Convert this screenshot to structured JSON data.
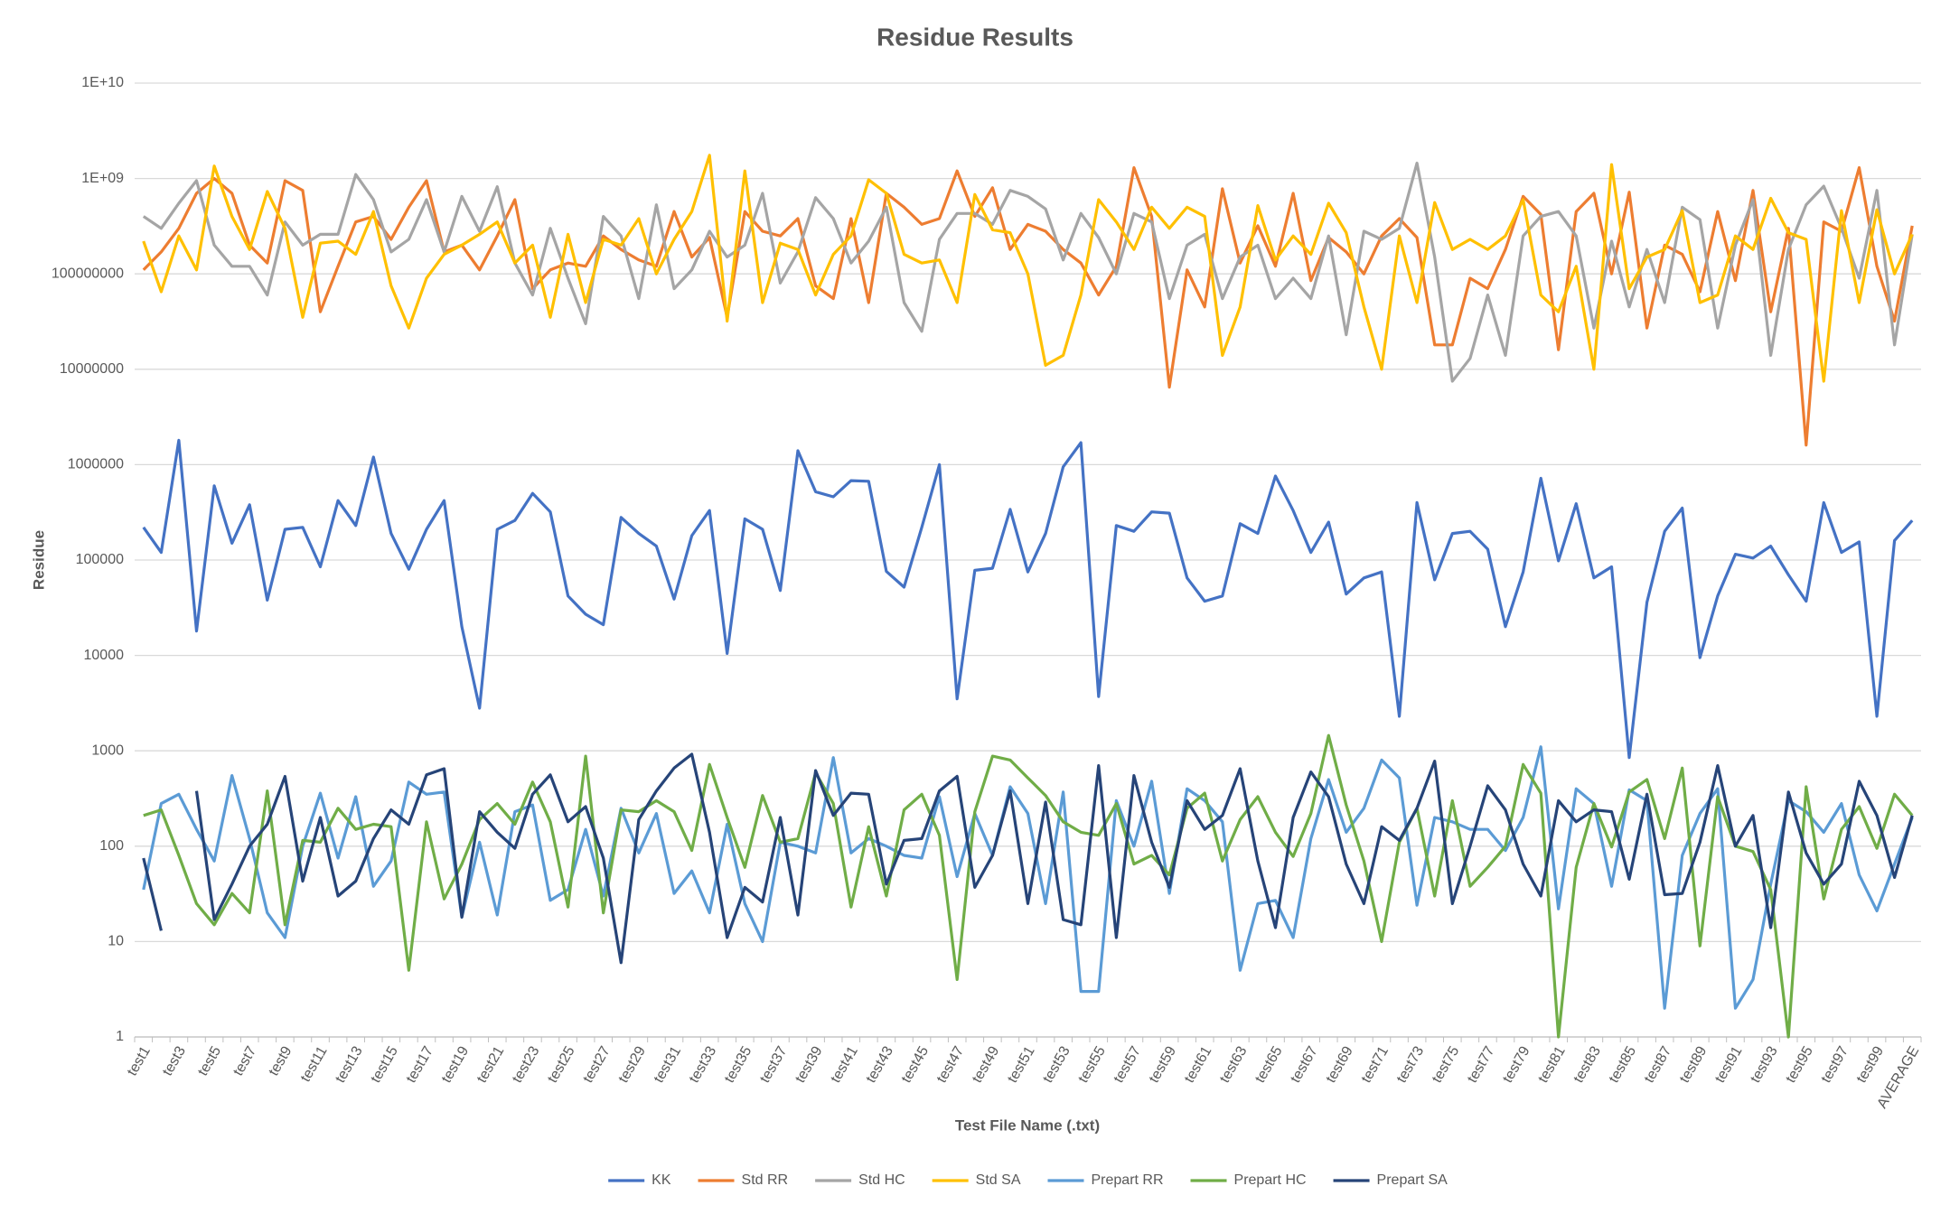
{
  "chart_data": {
    "type": "line",
    "title": "Residue Results",
    "x_label": "Test File Name (.txt)",
    "y_label": "Residue",
    "log_y": true,
    "grid": true,
    "legend": "bottom",
    "ylim": [
      1,
      10000000000
    ],
    "yticks": [
      1,
      10,
      100,
      1000,
      10000,
      100000,
      1000000,
      10000000,
      100000000,
      {
        "value": 1000000000,
        "label": "1E+09"
      },
      {
        "value": 10000000000,
        "label": "1E+10"
      }
    ],
    "categories": [
      "test1",
      null,
      "test3",
      null,
      "test5",
      null,
      "test7",
      null,
      "test9",
      null,
      "test11",
      null,
      "test13",
      null,
      "test15",
      null,
      "test17",
      null,
      "test19",
      null,
      "test21",
      null,
      "test23",
      null,
      "test25",
      null,
      "test27",
      null,
      "test29",
      null,
      "test31",
      null,
      "test33",
      null,
      "test35",
      null,
      "test37",
      null,
      "test39",
      null,
      "test41",
      null,
      "test43",
      null,
      "test45",
      null,
      "test47",
      null,
      "test49",
      null,
      "test51",
      null,
      "test53",
      null,
      "test55",
      null,
      "test57",
      null,
      "test59",
      null,
      "test61",
      null,
      "test63",
      null,
      "test65",
      null,
      "test67",
      null,
      "test69",
      null,
      "test71",
      null,
      "test73",
      null,
      "test75",
      null,
      "test77",
      null,
      "test79",
      null,
      "test81",
      null,
      "test83",
      null,
      "test85",
      null,
      "test87",
      null,
      "test89",
      null,
      "test91",
      null,
      "test93",
      null,
      "test95",
      null,
      "test97",
      null,
      "test99",
      null,
      "AVERAGE"
    ],
    "series": [
      {
        "name": "KK",
        "color": "#4472c4",
        "values": [
          220000,
          120000,
          1800000,
          18000,
          600000,
          150000,
          380000,
          38000,
          210000,
          220000,
          85000,
          420000,
          230000,
          1200000,
          190000,
          80000,
          210000,
          420000,
          20000,
          2800,
          210000,
          260000,
          500000,
          320000,
          42000,
          27000,
          21000,
          280000,
          190000,
          140000,
          39000,
          180000,
          330000,
          10500,
          270000,
          210000,
          48000,
          1400000,
          520000,
          460000,
          680000,
          670000,
          76000,
          52000,
          220000,
          1000000,
          3500,
          78000,
          82000,
          340000,
          75000,
          190000,
          950000,
          1700000,
          3700,
          230000,
          200000,
          320000,
          310000,
          65000,
          37000,
          42000,
          240000,
          190000,
          760000,
          330000,
          120000,
          250000,
          44000,
          65000,
          75000,
          2300,
          400000,
          62000,
          190000,
          200000,
          130000,
          20000,
          75000,
          720000,
          98000,
          390000,
          65000,
          85000,
          850,
          36000,
          200000,
          350000,
          9500,
          42000,
          115000,
          105000,
          140000,
          70000,
          37000,
          400000,
          120000,
          155000,
          2300,
          160000,
          260000
        ]
      },
      {
        "name": "Std RR",
        "color": "#ed7d31",
        "values": [
          110000000,
          170000000,
          300000000,
          700000000,
          1000000000,
          700000000,
          200000000,
          130000000,
          950000000,
          750000000,
          40000000,
          120000000,
          350000000,
          400000000,
          230000000,
          500000000,
          950000000,
          170000000,
          200000000,
          110000000,
          250000000,
          600000000,
          70000000,
          110000000,
          130000000,
          120000000,
          250000000,
          180000000,
          140000000,
          120000000,
          450000000,
          150000000,
          240000000,
          35000000,
          450000000,
          280000000,
          250000000,
          380000000,
          75000000,
          55000000,
          380000000,
          50000000,
          700000000,
          500000000,
          330000000,
          380000000,
          1200000000,
          400000000,
          800000000,
          180000000,
          330000000,
          280000000,
          180000000,
          130000000,
          60000000,
          120000000,
          1300000000,
          400000000,
          6500000,
          110000000,
          45000000,
          780000000,
          130000000,
          320000000,
          120000000,
          700000000,
          85000000,
          240000000,
          170000000,
          100000000,
          250000000,
          380000000,
          240000000,
          18000000,
          18000000,
          90000000,
          70000000,
          180000000,
          650000000,
          420000000,
          16000000,
          450000000,
          700000000,
          100000000,
          720000000,
          27000000,
          200000000,
          160000000,
          65000000,
          450000000,
          85000000,
          750000000,
          40000000,
          300000000,
          1600000,
          350000000,
          280000000,
          1300000000,
          120000000,
          32000000,
          320000000
        ]
      },
      {
        "name": "Std HC",
        "color": "#a5a5a5",
        "values": [
          400000000,
          300000000,
          550000000,
          950000000,
          200000000,
          120000000,
          120000000,
          60000000,
          350000000,
          200000000,
          260000000,
          260000000,
          1100000000,
          600000000,
          170000000,
          230000000,
          600000000,
          170000000,
          650000000,
          280000000,
          820000000,
          130000000,
          60000000,
          300000000,
          90000000,
          30000000,
          400000000,
          250000000,
          55000000,
          530000000,
          70000000,
          110000000,
          280000000,
          150000000,
          200000000,
          700000000,
          80000000,
          170000000,
          630000000,
          380000000,
          130000000,
          220000000,
          500000000,
          50000000,
          25000000,
          230000000,
          430000000,
          430000000,
          330000000,
          750000000,
          650000000,
          480000000,
          140000000,
          430000000,
          240000000,
          100000000,
          430000000,
          350000000,
          55000000,
          200000000,
          260000000,
          55000000,
          150000000,
          200000000,
          55000000,
          90000000,
          55000000,
          250000000,
          23000000,
          280000000,
          230000000,
          300000000,
          1450000000,
          150000000,
          7500000,
          13000000,
          60000000,
          14000000,
          250000000,
          400000000,
          450000000,
          250000000,
          27000000,
          220000000,
          45000000,
          180000000,
          50000000,
          500000000,
          370000000,
          27000000,
          200000000,
          600000000,
          14000000,
          180000000,
          530000000,
          830000000,
          300000000,
          90000000,
          750000000,
          18000000,
          260000000
        ]
      },
      {
        "name": "Std SA",
        "color": "#ffc000",
        "values": [
          220000000,
          65000000,
          250000000,
          110000000,
          1350000000,
          400000000,
          180000000,
          730000000,
          300000000,
          35000000,
          210000000,
          220000000,
          160000000,
          450000000,
          75000000,
          27000000,
          90000000,
          160000000,
          200000000,
          260000000,
          350000000,
          130000000,
          200000000,
          35000000,
          260000000,
          50000000,
          230000000,
          200000000,
          380000000,
          100000000,
          230000000,
          450000000,
          1750000000,
          32000000,
          1200000000,
          50000000,
          210000000,
          180000000,
          60000000,
          160000000,
          250000000,
          970000000,
          700000000,
          160000000,
          130000000,
          140000000,
          50000000,
          680000000,
          290000000,
          270000000,
          100000000,
          11000000,
          14000000,
          60000000,
          600000000,
          350000000,
          180000000,
          500000000,
          300000000,
          500000000,
          400000000,
          14000000,
          45000000,
          520000000,
          140000000,
          250000000,
          160000000,
          550000000,
          270000000,
          45000000,
          10000000,
          250000000,
          50000000,
          560000000,
          180000000,
          230000000,
          180000000,
          250000000,
          600000000,
          60000000,
          40000000,
          120000000,
          10000000,
          1400000000,
          70000000,
          150000000,
          180000000,
          460000000,
          50000000,
          60000000,
          250000000,
          180000000,
          620000000,
          270000000,
          230000000,
          7500000,
          460000000,
          50000000,
          470000000,
          100000000,
          260000000
        ]
      },
      {
        "name": "Prepart RR",
        "color": "#5b9bd5",
        "values": [
          35,
          280,
          350,
          150,
          70,
          550,
          120,
          20,
          11,
          100,
          360,
          75,
          330,
          38,
          70,
          470,
          350,
          370,
          18,
          110,
          19,
          230,
          270,
          27,
          35,
          150,
          30,
          250,
          85,
          220,
          32,
          55,
          20,
          170,
          25,
          10,
          110,
          100,
          85,
          850,
          85,
          120,
          100,
          80,
          75,
          330,
          48,
          220,
          80,
          420,
          220,
          25,
          370,
          3,
          3,
          300,
          100,
          480,
          32,
          400,
          300,
          180,
          5,
          25,
          27,
          11,
          120,
          500,
          140,
          250,
          800,
          520,
          24,
          200,
          180,
          150,
          150,
          90,
          200,
          1100,
          22,
          400,
          280,
          38,
          390,
          300,
          2,
          80,
          220,
          400,
          2,
          4,
          40,
          300,
          230,
          140,
          280,
          50,
          21,
          65,
          200
        ]
      },
      {
        "name": "Prepart HC",
        "color": "#70ad47",
        "values": [
          210,
          240,
          80,
          25,
          15,
          32,
          20,
          380,
          15,
          115,
          110,
          250,
          150,
          170,
          160,
          5,
          180,
          28,
          65,
          190,
          280,
          170,
          470,
          180,
          23,
          880,
          20,
          240,
          230,
          300,
          230,
          90,
          720,
          200,
          60,
          340,
          110,
          120,
          590,
          280,
          23,
          160,
          30,
          240,
          350,
          130,
          4,
          230,
          880,
          800,
          520,
          340,
          180,
          140,
          130,
          280,
          65,
          80,
          50,
          250,
          360,
          70,
          190,
          330,
          140,
          78,
          220,
          1450,
          270,
          70,
          10,
          110,
          250,
          30,
          300,
          38,
          60,
          100,
          720,
          360,
          1,
          60,
          280,
          98,
          370,
          500,
          120,
          660,
          9,
          330,
          100,
          88,
          35,
          1,
          420,
          28,
          150,
          260,
          95,
          350,
          210
        ]
      },
      {
        "name": "Prepart SA",
        "color": "#264478",
        "values": [
          75,
          13,
          null,
          380,
          17,
          40,
          100,
          170,
          540,
          43,
          200,
          30,
          43,
          120,
          240,
          170,
          560,
          650,
          18,
          230,
          140,
          95,
          350,
          560,
          180,
          260,
          75,
          6,
          190,
          380,
          660,
          920,
          140,
          11,
          37,
          26,
          200,
          19,
          620,
          210,
          360,
          350,
          40,
          115,
          120,
          380,
          540,
          37,
          80,
          380,
          25,
          290,
          17,
          15,
          700,
          11,
          550,
          110,
          37,
          300,
          150,
          210,
          650,
          70,
          14,
          200,
          600,
          330,
          65,
          25,
          160,
          115,
          250,
          780,
          25,
          100,
          430,
          240,
          65,
          30,
          300,
          180,
          240,
          230,
          45,
          350,
          31,
          32,
          110,
          700,
          100,
          210,
          14,
          370,
          85,
          40,
          65,
          480,
          210,
          47,
          210
        ]
      }
    ]
  }
}
